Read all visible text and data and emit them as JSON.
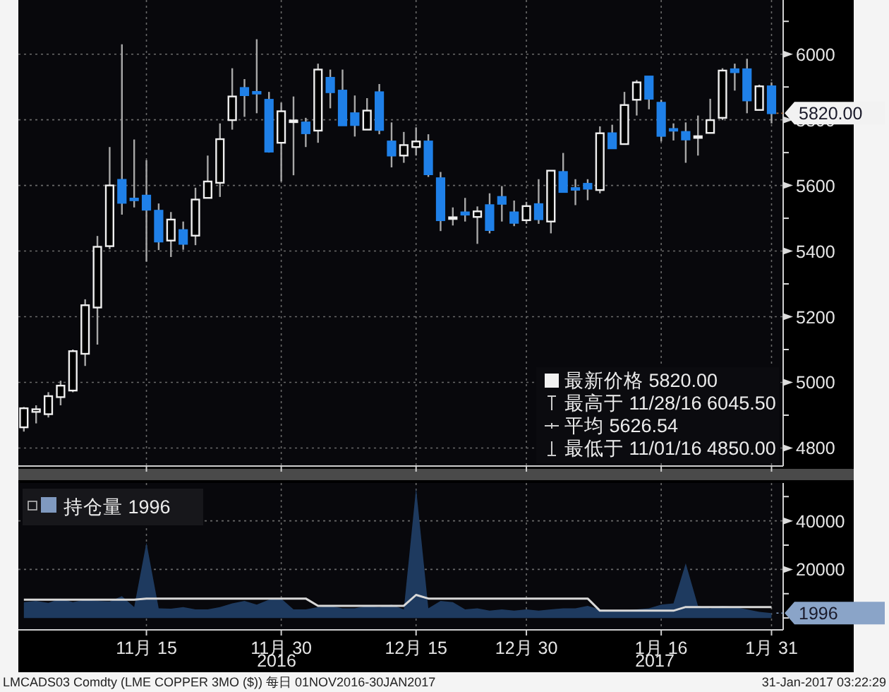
{
  "chart_data": [
    {
      "type": "candlestick",
      "categories": [
        null,
        null,
        null,
        null,
        null,
        null,
        null,
        null,
        null,
        null,
        "11月 15",
        null,
        null,
        null,
        null,
        null,
        null,
        null,
        null,
        null,
        null,
        "11月 30",
        null,
        null,
        null,
        null,
        null,
        null,
        null,
        null,
        null,
        null,
        "12月 15",
        null,
        null,
        null,
        null,
        null,
        null,
        null,
        null,
        "12月 30",
        null,
        null,
        null,
        null,
        null,
        null,
        null,
        null,
        null,
        null,
        "1月 16",
        null,
        null,
        null,
        null,
        null,
        null,
        null,
        null,
        "1月 31"
      ],
      "ohlc": [
        [
          4863,
          4925,
          4850,
          4921
        ],
        [
          4910,
          4930,
          4875,
          4918
        ],
        [
          4903,
          4970,
          4893,
          4958
        ],
        [
          4955,
          5005,
          4930,
          4990
        ],
        [
          4975,
          5100,
          4970,
          5095
        ],
        [
          5087,
          5253,
          5050,
          5235
        ],
        [
          5228,
          5446,
          5115,
          5413
        ],
        [
          5415,
          5717,
          5406,
          5600
        ],
        [
          5617,
          6030,
          5511,
          5547
        ],
        [
          5560,
          5740,
          5533,
          5555
        ],
        [
          5569,
          5677,
          5368,
          5526
        ],
        [
          5523,
          5545,
          5403,
          5429
        ],
        [
          5432,
          5519,
          5382,
          5496
        ],
        [
          5464,
          5490,
          5404,
          5422
        ],
        [
          5447,
          5593,
          5418,
          5557
        ],
        [
          5562,
          5691,
          5562,
          5612
        ],
        [
          5608,
          5789,
          5565,
          5741
        ],
        [
          5799,
          5957,
          5770,
          5871
        ],
        [
          5897,
          5924,
          5809,
          5875
        ],
        [
          5885,
          6045.5,
          5820,
          5880
        ],
        [
          5861,
          5885,
          5700,
          5703
        ],
        [
          5730,
          5852,
          5612,
          5826
        ],
        [
          5795,
          5871,
          5631,
          5798
        ],
        [
          5792,
          5806,
          5717,
          5759
        ],
        [
          5767,
          5971,
          5730,
          5953
        ],
        [
          5928,
          5953,
          5835,
          5884
        ],
        [
          5889,
          5953,
          5783,
          5783
        ],
        [
          5820,
          5874,
          5749,
          5784
        ],
        [
          5770,
          5866,
          5770,
          5828
        ],
        [
          5884,
          5909,
          5756,
          5769
        ],
        [
          5734,
          5792,
          5655,
          5691
        ],
        [
          5691,
          5763,
          5669,
          5723
        ],
        [
          5717,
          5777,
          5691,
          5734
        ],
        [
          5734,
          5756,
          5626,
          5634
        ],
        [
          5622,
          5641,
          5461,
          5494
        ],
        [
          5498,
          5533,
          5478,
          5503
        ],
        [
          5518,
          5562,
          5490,
          5511
        ],
        [
          5504,
          5536,
          5422,
          5521
        ],
        [
          5540,
          5576,
          5454,
          5464
        ],
        [
          5565,
          5598,
          5490,
          5544
        ],
        [
          5518,
          5554,
          5476,
          5486
        ],
        [
          5494,
          5550,
          5483,
          5537
        ],
        [
          5543,
          5619,
          5483,
          5497
        ],
        [
          5490,
          5645,
          5454,
          5645
        ],
        [
          5641,
          5699,
          5580,
          5580
        ],
        [
          5592,
          5619,
          5540,
          5589
        ],
        [
          5605,
          5619,
          5555,
          5590
        ],
        [
          5586,
          5780,
          5576,
          5759
        ],
        [
          5759,
          5785,
          5713,
          5713
        ],
        [
          5726,
          5885,
          5726,
          5845
        ],
        [
          5861,
          5921,
          5813,
          5914
        ],
        [
          5932,
          5932,
          5832,
          5864
        ],
        [
          5852,
          5861,
          5734,
          5751
        ],
        [
          5772,
          5789,
          5737,
          5769
        ],
        [
          5763,
          5792,
          5669,
          5740
        ],
        [
          5747,
          5813,
          5691,
          5750
        ],
        [
          5760,
          5864,
          5760,
          5799
        ],
        [
          5806,
          5957,
          5799,
          5950
        ],
        [
          5954,
          5971,
          5889,
          5945
        ],
        [
          5954,
          5986,
          5820,
          5859
        ],
        [
          5830,
          5907,
          5830,
          5902
        ],
        [
          5902,
          5914,
          5789,
          5820
        ]
      ],
      "ylim": [
        4745,
        6165
      ],
      "yticks": [
        4800,
        {
          "value": 4900,
          "label": null
        },
        5000,
        {
          "value": 5100,
          "label": null
        },
        5200,
        {
          "value": 5300,
          "label": null
        },
        5400,
        {
          "value": 5500,
          "label": null
        },
        5600,
        {
          "value": 5700,
          "label": null
        },
        5800,
        {
          "value": 5900,
          "label": null
        },
        6000,
        {
          "value": 6100,
          "label": null
        }
      ],
      "grid": true,
      "tick_labels": "y",
      "annotations": [
        "最新价格 5820.00",
        "最高于 11/28/16 6045.50",
        "平均 5626.54",
        "最低于 11/01/16 4850.00",
        {
          "text": "5820.00",
          "x": "1月 31",
          "y": 5820
        }
      ]
    },
    {
      "type": "area",
      "categories": [
        null,
        null,
        null,
        null,
        null,
        null,
        null,
        null,
        null,
        null,
        "11月 15",
        null,
        null,
        null,
        null,
        null,
        null,
        null,
        null,
        null,
        null,
        "11月 30",
        null,
        null,
        null,
        null,
        null,
        null,
        null,
        null,
        null,
        null,
        "12月 15",
        null,
        null,
        null,
        null,
        null,
        null,
        null,
        null,
        "12月 30",
        null,
        null,
        null,
        null,
        null,
        null,
        null,
        null,
        null,
        null,
        "1月 16",
        null,
        null,
        null,
        null,
        null,
        null,
        null,
        null,
        "1月 31"
      ],
      "series": [
        {
          "name": "持仓量 1996",
          "color": "#1e3a5f",
          "values": [
            6500,
            7000,
            6200,
            8000,
            6500,
            7500,
            7000,
            6800,
            9000,
            4500,
            31000,
            4000,
            3800,
            4500,
            3500,
            3500,
            4500,
            6000,
            7000,
            5500,
            7500,
            8000,
            3500,
            3500,
            4500,
            5000,
            4000,
            4000,
            5000,
            4500,
            5500,
            3500,
            53500,
            4000,
            7000,
            6500,
            3500,
            4000,
            3000,
            3500,
            3000,
            3500,
            3000,
            3500,
            4000,
            4000,
            5000,
            3500,
            3000,
            3000,
            3500,
            4000,
            5500,
            6000,
            22500,
            5000,
            4000,
            5000,
            4500,
            3500,
            2500,
            1996
          ]
        },
        {
          "type": "line",
          "color": "#d8d8d8",
          "values": [
            7500,
            7500,
            7500,
            7500,
            7500,
            7500,
            7500,
            7500,
            7500,
            7500,
            8000,
            8000,
            8000,
            8000,
            8000,
            8000,
            8000,
            8000,
            8000,
            8000,
            8000,
            8000,
            8000,
            8000,
            5000,
            5000,
            5000,
            5000,
            5000,
            5000,
            5000,
            5000,
            9500,
            8000,
            8000,
            8000,
            8000,
            8000,
            8000,
            8000,
            8000,
            8000,
            8000,
            8000,
            8000,
            8000,
            8000,
            3000,
            3000,
            3000,
            3000,
            3000,
            3000,
            3000,
            4500,
            4500,
            4500,
            4500,
            4500,
            4500,
            4500,
            4500
          ]
        }
      ],
      "ylim": [
        -4900,
        55600
      ],
      "yticks": [
        {
          "value": 0,
          "label": null
        },
        {
          "value": 10000,
          "label": null
        },
        20000,
        {
          "value": 30000,
          "label": null
        },
        40000,
        {
          "value": 50000,
          "label": null
        }
      ],
      "grid": true,
      "legend": "top left",
      "annotations": [
        {
          "text": "1996",
          "x": "1月 31",
          "y": 1996
        },
        "2016",
        "2017",
        "LMCADS03 Comdty (LME COPPER 3MO ($)) 每日 01NOV2016-30JAN2017",
        "31-Jan-2017 03:22:29"
      ]
    }
  ]
}
